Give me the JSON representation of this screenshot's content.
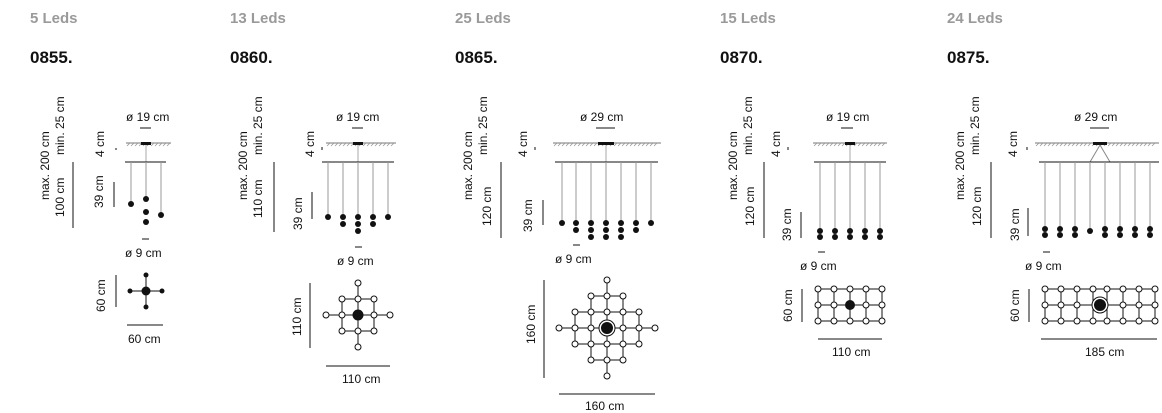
{
  "lamps": [
    {
      "leds": "5 Leds",
      "code": "0855.",
      "max_label": "max. 200 cm",
      "min_label": "min. 25 cm",
      "canopy_label": "ø 19 cm",
      "canopy_gap_label": "4 cm",
      "total_height_label": "100 cm",
      "drop_label": "39 cm",
      "led_label": "ø 9 cm",
      "plan_height_label": "60 cm",
      "plan_width_label": "60 cm"
    },
    {
      "leds": "13 Leds",
      "code": "0860.",
      "max_label": "max. 200 cm",
      "min_label": "min. 25 cm",
      "canopy_label": "ø 19 cm",
      "canopy_gap_label": "4 cm",
      "total_height_label": "110 cm",
      "drop_label": "39 cm",
      "led_label": "ø 9 cm",
      "plan_height_label": "110 cm",
      "plan_width_label": "110 cm"
    },
    {
      "leds": "25 Leds",
      "code": "0865.",
      "max_label": "max. 200 cm",
      "min_label": "min. 25 cm",
      "canopy_label": "ø 29 cm",
      "canopy_gap_label": "4 cm",
      "total_height_label": "120 cm",
      "drop_label": "39 cm",
      "led_label": "ø 9 cm",
      "plan_height_label": "160 cm",
      "plan_width_label": "160 cm"
    },
    {
      "leds": "15 Leds",
      "code": "0870.",
      "max_label": "max. 200 cm",
      "min_label": "min. 25 cm",
      "canopy_label": "ø 19 cm",
      "canopy_gap_label": "4 cm",
      "total_height_label": "120 cm",
      "drop_label": "39 cm",
      "led_label": "ø 9 cm",
      "plan_height_label": "60 cm",
      "plan_width_label": "110 cm"
    },
    {
      "leds": "24 Leds",
      "code": "0875.",
      "max_label": "max. 200 cm",
      "min_label": "min. 25 cm",
      "canopy_label": "ø 29 cm",
      "canopy_gap_label": "4 cm",
      "total_height_label": "120 cm",
      "drop_label": "39 cm",
      "led_label": "ø 9 cm",
      "plan_height_label": "60 cm",
      "plan_width_label": "185 cm"
    }
  ]
}
